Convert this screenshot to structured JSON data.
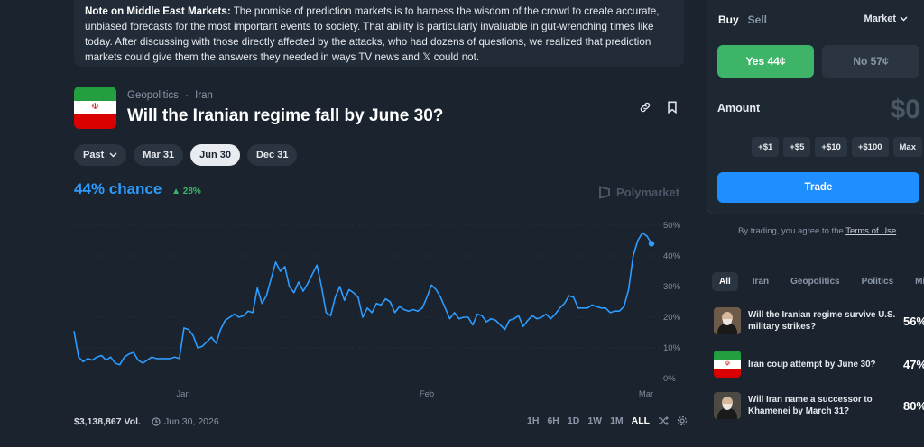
{
  "note": {
    "heading": "Note on Middle East Markets:",
    "body": "The promise of prediction markets is to harness the wisdom of the crowd to create accurate, unbiased forecasts for the most important events to society. That ability is particularly invaluable in gut-wrenching times like today. After discussing with those directly affected by the attacks, who had dozens of questions, we realized that prediction markets could give them the answers they needed in ways TV news and 𝕏 could not."
  },
  "market": {
    "category": "Geopolitics",
    "separator": "·",
    "subcategory": "Iran",
    "title": "Will the Iranian regime fall by June 30?",
    "chips": [
      {
        "label": "Past",
        "active": false
      },
      {
        "label": "Mar 31",
        "active": false
      },
      {
        "label": "Jun 30",
        "active": true
      },
      {
        "label": "Dec 31",
        "active": false
      }
    ],
    "chance_text": "44% chance",
    "change_text": "28%",
    "brand": "Polymarket",
    "volume": "$3,138,867 Vol.",
    "end_date": "Jun 30, 2026",
    "ranges": [
      "1H",
      "6H",
      "1D",
      "1W",
      "1M",
      "ALL"
    ],
    "active_range": "ALL"
  },
  "chart_data": {
    "type": "line",
    "x_ticks": [
      "Jan",
      "Feb",
      "Mar"
    ],
    "y_ticks": [
      "50%",
      "40%",
      "30%",
      "20%",
      "10%",
      "0%"
    ],
    "ylim": [
      0,
      50
    ],
    "color": "#2d9cff",
    "series": [
      {
        "values": [
          15.5,
          7,
          5.5,
          6.5,
          6,
          7,
          7.5,
          6,
          7,
          5,
          4.5,
          7,
          8,
          8.5,
          6,
          5,
          6,
          7,
          6.5,
          6.5,
          6.5,
          6.5,
          7,
          6.5,
          16.5,
          16,
          14,
          10,
          10.5,
          12,
          13.5,
          11.5,
          16,
          19,
          20,
          21,
          20,
          20.5,
          22,
          21.5,
          29.5,
          24.5,
          27,
          32.5,
          38,
          35,
          36.5,
          30,
          28,
          31.5,
          28.5,
          31,
          34,
          37,
          30,
          21.5,
          20.5,
          26.5,
          30,
          25.5,
          29,
          28,
          26.5,
          20,
          23,
          21.5,
          24.5,
          24,
          26,
          25,
          21.5,
          23.5,
          22.5,
          22,
          22.5,
          22,
          23,
          26.5,
          30.5,
          29,
          26.5,
          23,
          19.5,
          21.5,
          19.5,
          20,
          20,
          17.5,
          21,
          20.5,
          18.5,
          19.5,
          19,
          17.5,
          16,
          19,
          19.5,
          20.5,
          17,
          19,
          20.5,
          19.5,
          20,
          21,
          19.5,
          21,
          23,
          24.5,
          27,
          26.5,
          23,
          23,
          23,
          24,
          23.5,
          23,
          23,
          21.5,
          22,
          22,
          23.5,
          29,
          40,
          45,
          47.5,
          46.5,
          44
        ]
      }
    ]
  },
  "trade": {
    "tab_buy": "Buy",
    "tab_sell": "Sell",
    "order_type": "Market",
    "yes_label": "Yes 44¢",
    "no_label": "No 57¢",
    "amount_label": "Amount",
    "amount_value": "$0",
    "quick": [
      "+$1",
      "+$5",
      "+$10",
      "+$100",
      "Max"
    ],
    "trade_label": "Trade",
    "terms_prefix": "By trading, you agree to the ",
    "terms_link": "Terms of Use",
    "terms_suffix": "."
  },
  "related": {
    "tabs": [
      "All",
      "Iran",
      "Geopolitics",
      "Politics",
      "Mid"
    ],
    "items": [
      {
        "title": "Will the Iranian regime survive U.S. military strikes?",
        "pct": "56%"
      },
      {
        "title": "Iran coup attempt by June 30?",
        "pct": "47%"
      },
      {
        "title": "Will Iran name a successor to Khamenei by March 31?",
        "pct": "80%"
      }
    ]
  }
}
